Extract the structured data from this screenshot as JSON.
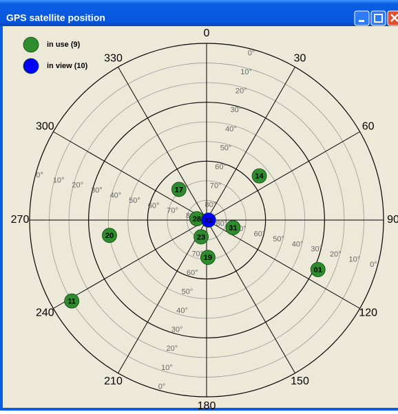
{
  "chart_data": {
    "type": "skyplot",
    "title": "GPS satellite position",
    "alim": [
      0,
      360
    ],
    "aticks": [
      0,
      30,
      60,
      90,
      120,
      150,
      180,
      210,
      240,
      270,
      300,
      330
    ],
    "rlim": [
      0,
      90
    ],
    "rticks": [
      {
        "value": 0,
        "label": "0°"
      },
      {
        "value": 10,
        "label": "10°"
      },
      {
        "value": 20,
        "label": "20°"
      },
      {
        "value": 30,
        "label": "30°"
      },
      {
        "value": 40,
        "label": "40°"
      },
      {
        "value": 50,
        "label": "50°"
      },
      {
        "value": 60,
        "label": "60°"
      },
      {
        "value": 70,
        "label": "70°"
      },
      {
        "value": 80,
        "label": "80°"
      }
    ],
    "series": [
      {
        "name": "in use (9)",
        "color": "#2e8b2e",
        "points": [
          {
            "id": "14",
            "azimuth": 50,
            "elevation": 55
          },
          {
            "id": "17",
            "azimuth": 318,
            "elevation": 69
          },
          {
            "id": "28",
            "azimuth": 278,
            "elevation": 85
          },
          {
            "id": "31",
            "azimuth": 106,
            "elevation": 76
          },
          {
            "id": "23",
            "azimuth": 198,
            "elevation": 81
          },
          {
            "id": "19",
            "azimuth": 178,
            "elevation": 71
          },
          {
            "id": "20",
            "azimuth": 261,
            "elevation": 40
          },
          {
            "id": "01",
            "azimuth": 114,
            "elevation": 28
          },
          {
            "id": "11",
            "azimuth": 239,
            "elevation": 10
          }
        ]
      },
      {
        "name": "in view (10)",
        "color": "#0000ff",
        "points": [
          {
            "id": "22",
            "azimuth": 90,
            "elevation": 89
          }
        ]
      }
    ]
  }
}
